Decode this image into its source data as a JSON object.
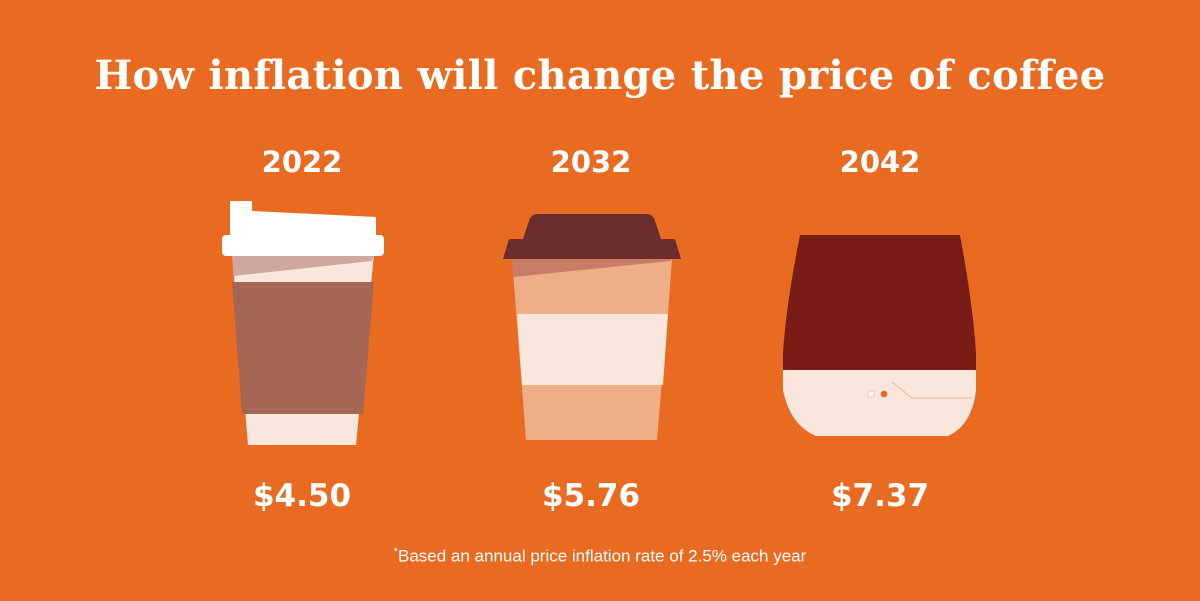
{
  "title": "How inflation will change the price of coffee",
  "items": [
    {
      "year": "2022",
      "price": "$4.50",
      "icon": "takeaway-cup-white-lid-icon"
    },
    {
      "year": "2032",
      "price": "$5.76",
      "icon": "takeaway-cup-brown-lid-icon"
    },
    {
      "year": "2042",
      "price": "$7.37",
      "icon": "rounded-cup-icon"
    }
  ],
  "footnote": {
    "marker": "*",
    "text": "Based an annual price inflation rate of 2.5% each year"
  },
  "colors": {
    "background": "#e96b22",
    "text": "#ffffff",
    "cream": "#f9e6dc",
    "latte": "#edae88",
    "mocha": "#a56655",
    "lid_brown": "#6b2c2c",
    "espresso": "#791b17",
    "lid_white": "#ffffff"
  }
}
